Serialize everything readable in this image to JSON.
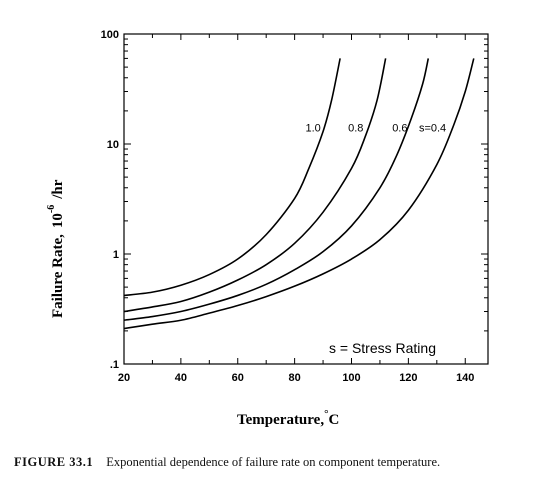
{
  "chart_data": {
    "type": "line",
    "x": [
      20,
      30,
      40,
      50,
      60,
      70,
      80,
      90,
      100,
      110,
      120,
      130,
      140,
      144
    ],
    "series": [
      {
        "label": "1.0",
        "x": [
          20,
          30,
          40,
          50,
          60,
          70,
          80,
          85,
          90,
          93,
          96
        ],
        "y": [
          0.42,
          0.45,
          0.52,
          0.65,
          0.9,
          1.5,
          3.2,
          6.0,
          13,
          25,
          60
        ]
      },
      {
        "label": "0.8",
        "x": [
          20,
          30,
          40,
          50,
          60,
          70,
          80,
          90,
          100,
          105,
          109,
          112
        ],
        "y": [
          0.3,
          0.33,
          0.37,
          0.45,
          0.58,
          0.8,
          1.25,
          2.4,
          6.0,
          12,
          25,
          60
        ]
      },
      {
        "label": "0.6",
        "x": [
          20,
          30,
          40,
          50,
          60,
          70,
          80,
          90,
          100,
          110,
          116,
          121,
          125,
          127
        ],
        "y": [
          0.25,
          0.27,
          0.3,
          0.35,
          0.42,
          0.53,
          0.72,
          1.05,
          1.8,
          4.0,
          8.0,
          17,
          35,
          60
        ]
      },
      {
        "label": "s=0.4",
        "x": [
          20,
          30,
          40,
          50,
          60,
          70,
          80,
          90,
          100,
          110,
          120,
          130,
          136,
          140,
          143
        ],
        "y": [
          0.21,
          0.23,
          0.25,
          0.29,
          0.34,
          0.41,
          0.51,
          0.66,
          0.9,
          1.35,
          2.5,
          6.5,
          15,
          30,
          60
        ]
      }
    ],
    "xlabel": "Temperature,",
    "xlabel_unit": "C",
    "ylabel": "Failure Rate,",
    "ylabel_unit": "/hr",
    "ylabel_base": "10",
    "ylabel_exp": "-6",
    "xlim": [
      20,
      148
    ],
    "ylim": [
      0.1,
      100
    ],
    "yscale": "log",
    "xticks": [
      "20",
      "40",
      "60",
      "80",
      "100",
      "120",
      "140"
    ],
    "yticks": [
      ".1",
      "1",
      "10",
      "100"
    ],
    "annotation": "s = Stress Rating",
    "grid": false
  },
  "caption": {
    "number": "FIGURE 33.1",
    "text": "Exponential dependence of failure rate on component temperature."
  }
}
